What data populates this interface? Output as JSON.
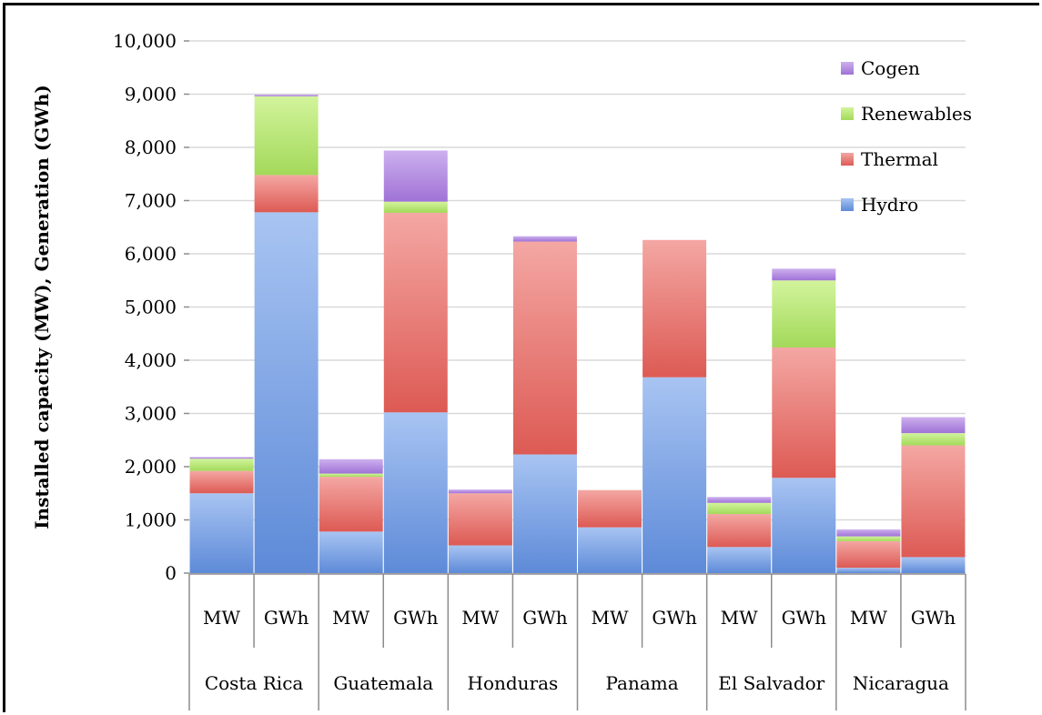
{
  "chart_data": {
    "type": "bar",
    "stacked": true,
    "title": "",
    "ylabel": "Installed capacity (MW), Generation (GWh)",
    "ylim": [
      0,
      10000
    ],
    "yticks": [
      "0",
      "1,000",
      "2,000",
      "3,000",
      "4,000",
      "5,000",
      "6,000",
      "7,000",
      "8,000",
      "9,000",
      "10,000"
    ],
    "ytick_values": [
      0,
      1000,
      2000,
      3000,
      4000,
      5000,
      6000,
      7000,
      8000,
      9000,
      10000
    ],
    "grid": true,
    "legend_placement": "top-right",
    "groups": [
      "Costa Rica",
      "Guatemala",
      "Honduras",
      "Panama",
      "El Salvador",
      "Nicaragua"
    ],
    "categories": [
      "MW",
      "GWh",
      "MW",
      "GWh",
      "MW",
      "GWh",
      "MW",
      "GWh",
      "MW",
      "GWh",
      "MW",
      "GWh"
    ],
    "series": [
      {
        "name": "Hydro",
        "color": "#7ea6e6",
        "values": [
          1500,
          6780,
          780,
          3020,
          520,
          2230,
          860,
          3680,
          490,
          1790,
          100,
          300
        ]
      },
      {
        "name": "Thermal",
        "color": "#e9706a",
        "values": [
          420,
          700,
          1030,
          3750,
          980,
          4000,
          700,
          2580,
          620,
          2450,
          500,
          2100
        ]
      },
      {
        "name": "Renewables",
        "color": "#b4e36a",
        "values": [
          230,
          1480,
          60,
          210,
          0,
          0,
          0,
          0,
          210,
          1260,
          90,
          230
        ]
      },
      {
        "name": "Cogen",
        "color": "#b48ae0",
        "values": [
          30,
          30,
          270,
          960,
          70,
          100,
          0,
          0,
          110,
          220,
          130,
          300
        ]
      }
    ]
  }
}
